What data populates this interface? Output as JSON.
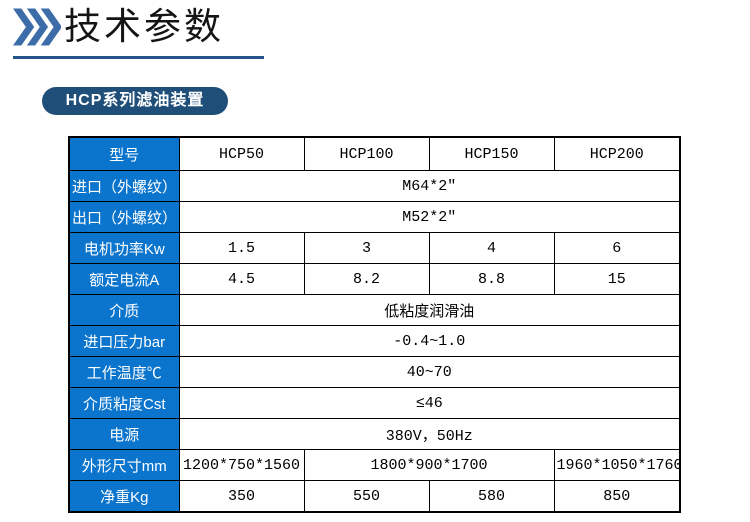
{
  "header": {
    "title": "技术参数",
    "icon": "triple-chevron-right-icon"
  },
  "badge": {
    "label": "HCP系列滤油装置"
  },
  "colors": {
    "label_cell_blue": "#0b74cc",
    "badge_navy": "#1f4e79",
    "chevron_blue": "#3c6da8",
    "underline_navy": "#24548c",
    "table_border": "#000000",
    "text": "#000000"
  },
  "table": {
    "rows": [
      {
        "label": "型号",
        "cells": [
          {
            "text": "HCP50",
            "span": 1
          },
          {
            "text": "HCP100",
            "span": 1
          },
          {
            "text": "HCP150",
            "span": 1
          },
          {
            "text": "HCP200",
            "span": 1
          }
        ]
      },
      {
        "label": "进口（外螺纹）",
        "cells": [
          {
            "text": "M64*2″",
            "span": 4
          }
        ]
      },
      {
        "label": "出口（外螺纹）",
        "cells": [
          {
            "text": "M52*2″",
            "span": 4
          }
        ]
      },
      {
        "label": "电机功率Kw",
        "cells": [
          {
            "text": "1.5",
            "span": 1
          },
          {
            "text": "3",
            "span": 1
          },
          {
            "text": "4",
            "span": 1
          },
          {
            "text": "6",
            "span": 1
          }
        ]
      },
      {
        "label": "额定电流A",
        "cells": [
          {
            "text": "4.5",
            "span": 1
          },
          {
            "text": "8.2",
            "span": 1
          },
          {
            "text": "8.8",
            "span": 1
          },
          {
            "text": "15",
            "span": 1
          }
        ]
      },
      {
        "label": "介质",
        "cells": [
          {
            "text": "低粘度润滑油",
            "span": 4
          }
        ]
      },
      {
        "label": "进口压力bar",
        "cells": [
          {
            "text": "-0.4~1.0",
            "span": 4
          }
        ]
      },
      {
        "label": "工作温度℃",
        "cells": [
          {
            "text": "40~70",
            "span": 4
          }
        ]
      },
      {
        "label": "介质粘度Cst",
        "cells": [
          {
            "text": "≤46",
            "span": 4
          }
        ]
      },
      {
        "label": "电源",
        "cells": [
          {
            "text": "380V，50Hz",
            "span": 4
          }
        ]
      },
      {
        "label": "外形尺寸mm",
        "cells": [
          {
            "text": "1200*750*1560",
            "span": 1
          },
          {
            "text": "1800*900*1700",
            "span": 2
          },
          {
            "text": "1960*1050*1760",
            "span": 1
          }
        ]
      },
      {
        "label": "净重Kg",
        "cells": [
          {
            "text": "350",
            "span": 1
          },
          {
            "text": "550",
            "span": 1
          },
          {
            "text": "580",
            "span": 1
          },
          {
            "text": "850",
            "span": 1
          }
        ]
      }
    ]
  }
}
